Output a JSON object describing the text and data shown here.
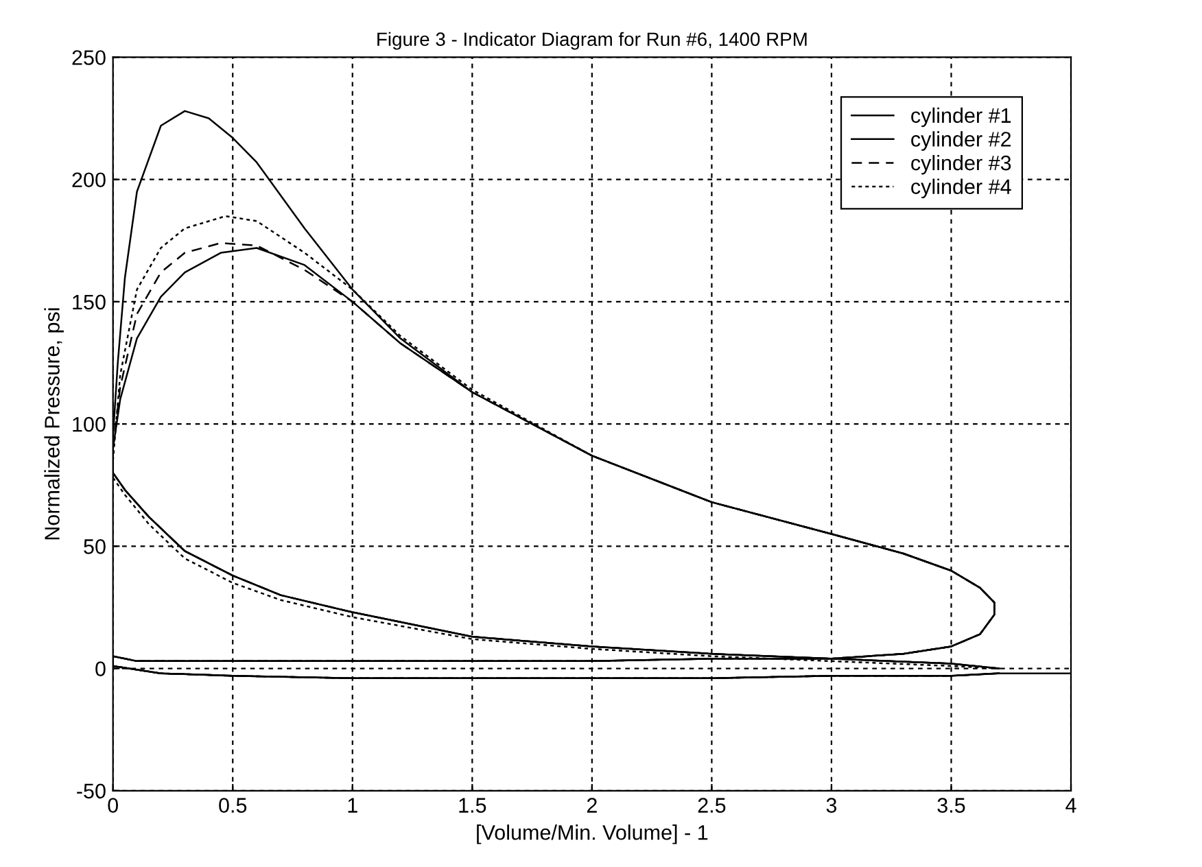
{
  "chart_data": {
    "type": "line",
    "title": "Figure 3 - Indicator Diagram for Run #6, 1400 RPM",
    "xlabel": "[Volume/Min. Volume] - 1",
    "ylabel": "Normalized Pressure, psi",
    "xlim": [
      0,
      4
    ],
    "xticks": [
      0,
      0.5,
      1,
      1.5,
      2,
      2.5,
      3,
      3.5,
      4
    ],
    "ylim": [
      -50,
      250
    ],
    "yticks": [
      -50,
      0,
      50,
      100,
      150,
      200,
      250
    ],
    "grid": true,
    "legend": "top right",
    "series": [
      {
        "name": "cylinder #1",
        "color": "#000000",
        "line_style": "solid",
        "x": [
          3.7,
          3.5,
          3.0,
          2.5,
          2.0,
          1.5,
          1.0,
          0.7,
          0.5,
          0.3,
          0.15,
          0.05,
          0,
          0,
          0.02,
          0.05,
          0.1,
          0.2,
          0.3,
          0.4,
          0.5,
          0.6,
          0.8,
          1.0,
          1.2,
          1.5,
          2.0,
          2.5,
          3.0,
          3.3,
          3.5,
          3.62,
          3.68,
          3.68,
          3.62,
          3.5,
          3.3,
          3.0,
          2.5,
          2.0,
          1.5,
          1.0,
          0.5,
          0.1,
          0,
          0,
          0.2,
          0.5,
          1.0,
          1.5,
          2.0,
          2.5,
          3.0,
          3.5,
          3.7,
          4.0
        ],
        "values": [
          0,
          2,
          4,
          6,
          9,
          13,
          23,
          30,
          38,
          48,
          62,
          73,
          80,
          95,
          125,
          160,
          195,
          222,
          228,
          225,
          217,
          207,
          180,
          155,
          135,
          113,
          87,
          68,
          55,
          47,
          40,
          33,
          27,
          22,
          14,
          9,
          6,
          4,
          4,
          3,
          3,
          3,
          3,
          3,
          5,
          1,
          -2,
          -3,
          -4,
          -4,
          -4,
          -4,
          -3,
          -3,
          -2,
          -2
        ]
      },
      {
        "name": "cylinder #2",
        "color": "#000000",
        "line_style": "solid",
        "x": [
          3.7,
          3.5,
          3.0,
          2.5,
          2.0,
          1.5,
          1.0,
          0.7,
          0.5,
          0.3,
          0.15,
          0.05,
          0,
          0,
          0.03,
          0.1,
          0.2,
          0.3,
          0.45,
          0.6,
          0.8,
          1.0,
          1.2,
          1.5,
          2.0,
          2.5,
          3.0,
          3.3,
          3.5,
          3.62,
          3.68,
          3.68,
          3.62,
          3.5,
          3.3,
          3.0,
          2.5,
          2.0,
          1.5,
          1.0,
          0.5,
          0.1,
          0,
          0,
          0.2,
          0.5,
          1.0,
          1.5,
          2.0,
          2.5,
          3.0,
          3.5,
          3.7
        ],
        "values": [
          0,
          2,
          4,
          6,
          9,
          13,
          23,
          30,
          38,
          48,
          62,
          73,
          80,
          90,
          110,
          135,
          152,
          162,
          170,
          172,
          165,
          150,
          133,
          113,
          87,
          68,
          55,
          47,
          40,
          33,
          27,
          22,
          14,
          9,
          6,
          4,
          4,
          3,
          3,
          3,
          3,
          3,
          5,
          1,
          -2,
          -3,
          -4,
          -4,
          -4,
          -4,
          -3,
          -3,
          -2
        ]
      },
      {
        "name": "cylinder #3",
        "color": "#000000",
        "line_style": "dashed",
        "x": [
          3.7,
          3.5,
          3.0,
          2.5,
          2.0,
          1.5,
          1.0,
          0.7,
          0.5,
          0.3,
          0.15,
          0.05,
          0,
          0,
          0.03,
          0.1,
          0.2,
          0.3,
          0.45,
          0.6,
          0.8,
          1.0,
          1.2,
          1.5,
          2.0,
          2.5,
          3.0,
          3.3,
          3.5,
          3.62,
          3.68,
          3.68,
          3.62,
          3.5,
          3.3,
          3.0,
          2.5,
          2.0,
          1.5,
          1.0,
          0.5,
          0.1,
          0,
          0,
          0.2,
          0.5,
          1.0,
          1.5,
          2.0,
          2.5,
          3.0,
          3.5,
          3.7
        ],
        "values": [
          0,
          2,
          4,
          6,
          9,
          13,
          23,
          30,
          38,
          48,
          62,
          73,
          80,
          90,
          115,
          145,
          162,
          170,
          174,
          173,
          163,
          150,
          133,
          113,
          87,
          68,
          55,
          47,
          40,
          33,
          27,
          22,
          14,
          9,
          6,
          4,
          4,
          3,
          3,
          3,
          3,
          3,
          5,
          1,
          -2,
          -3,
          -4,
          -4,
          -4,
          -4,
          -3,
          -3,
          -2
        ]
      },
      {
        "name": "cylinder #4",
        "color": "#000000",
        "line_style": "dotted",
        "x": [
          3.7,
          3.5,
          3.0,
          2.5,
          2.0,
          1.5,
          1.0,
          0.7,
          0.5,
          0.3,
          0.15,
          0.05,
          0,
          0,
          0.03,
          0.1,
          0.2,
          0.3,
          0.47,
          0.6,
          0.8,
          1.0,
          1.2,
          1.5,
          2.0,
          2.5,
          3.0,
          3.3,
          3.5,
          3.62,
          3.68,
          3.68,
          3.62,
          3.5,
          3.3,
          3.0,
          2.5,
          2.0,
          1.5,
          1.0,
          0.5,
          0.1,
          0,
          0,
          0.2,
          0.5,
          1.0,
          1.5,
          2.0,
          2.5,
          3.0,
          3.5,
          3.7
        ],
        "values": [
          0,
          1,
          3,
          5,
          8,
          12,
          21,
          28,
          35,
          45,
          59,
          71,
          78,
          85,
          120,
          155,
          172,
          180,
          185,
          183,
          170,
          155,
          136,
          114,
          87,
          68,
          55,
          47,
          40,
          33,
          27,
          22,
          14,
          9,
          6,
          4,
          4,
          3,
          3,
          3,
          3,
          3,
          5,
          1,
          -2,
          -3,
          -4,
          -4,
          -4,
          -4,
          -3,
          -3,
          -2
        ]
      }
    ]
  }
}
